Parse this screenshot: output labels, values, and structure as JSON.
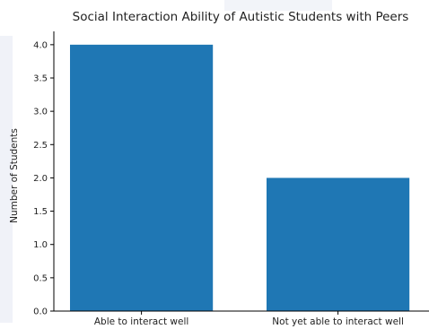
{
  "chart_data": {
    "type": "bar",
    "title": "Social Interaction Ability of Autistic Students with Peers",
    "xlabel": "",
    "ylabel": "Number of Students",
    "categories": [
      "Able to interact well",
      "Not yet able to interact well"
    ],
    "values": [
      4,
      2
    ],
    "ylim": [
      0,
      4.2
    ],
    "yticks": [
      "0.0",
      "0.5",
      "1.0",
      "1.5",
      "2.0",
      "2.5",
      "3.0",
      "3.5",
      "4.0"
    ],
    "grid": false,
    "legend": "none",
    "bar_color": "#1f77b4"
  }
}
